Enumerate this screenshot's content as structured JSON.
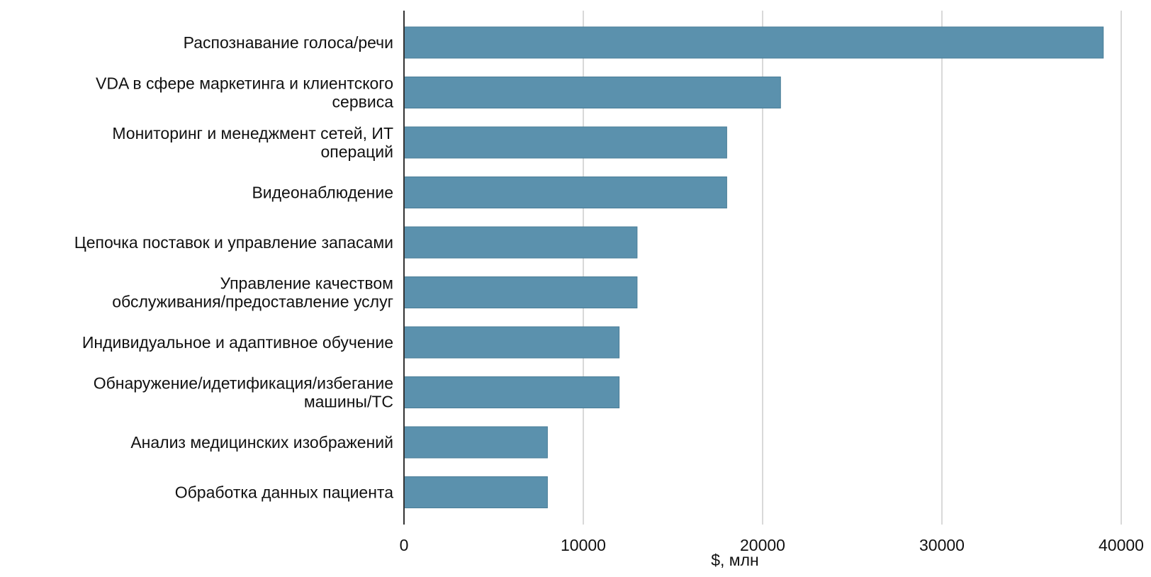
{
  "chart_data": {
    "type": "bar",
    "orientation": "horizontal",
    "categories": [
      [
        "Распознавание голоса/речи"
      ],
      [
        "VDA в сфере маркетинга и клиентского",
        "сервиса"
      ],
      [
        "Мониторинг и менеджмент сетей, ИТ",
        "операций"
      ],
      [
        "Видеонаблюдение"
      ],
      [
        "Цепочка поставок и управление запасами"
      ],
      [
        "Управление качеством",
        "обслуживания/предоставление услуг"
      ],
      [
        "Индивидуальное и адаптивное обучение"
      ],
      [
        "Обнаружение/идетификация/избегание",
        "машины/ТС"
      ],
      [
        "Анализ медицинских изображений"
      ],
      [
        "Обработка данных пациента"
      ]
    ],
    "values": [
      39000,
      21000,
      18000,
      18000,
      13000,
      13000,
      12000,
      12000,
      8000,
      8000
    ],
    "xticks": [
      0,
      10000,
      20000,
      30000,
      40000
    ],
    "xlim": [
      0,
      40000
    ],
    "xlabel": "$, млн",
    "ylabel": "",
    "title": "",
    "grid": "vertical",
    "bar_color": "#5b91ad",
    "bar_edge_color": "#4a7d97",
    "grid_color": "#d9d9d9",
    "axis_color": "#333333"
  }
}
